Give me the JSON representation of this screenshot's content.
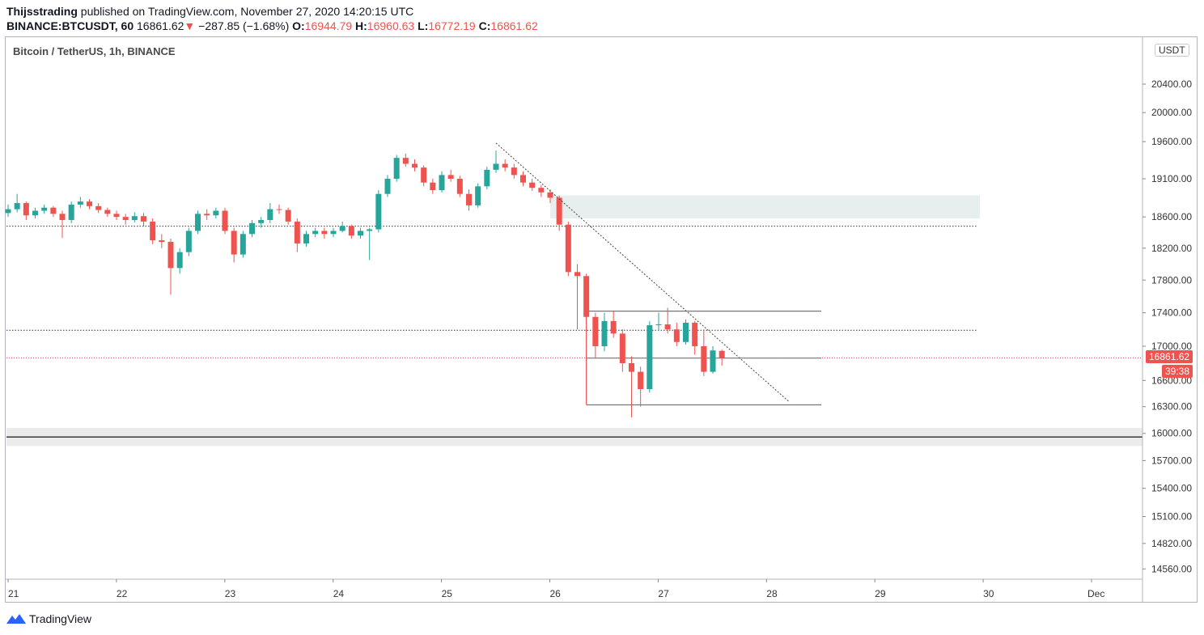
{
  "header": {
    "author": "Thijsstrading",
    "published_text": "published on TradingView.com, November 27, 2020 14:20:15 UTC",
    "symbol": "BINANCE:BTCUSDT, 60",
    "last": "16861.62",
    "change_arrow": "▼",
    "change": "−287.85 (−1.68%)",
    "o_label": "O:",
    "o": "16944.79",
    "h_label": "H:",
    "h": "16960.63",
    "l_label": "L:",
    "l": "16772.19",
    "c_label": "C:",
    "c": "16861.62"
  },
  "legend_title": "Bitcoin / TetherUS, 1h, BINANCE",
  "currency_tag": "USDT",
  "price_tag": "16861.62",
  "countdown_tag": "39:38",
  "brand": "TradingView",
  "colors": {
    "up": "#26a69a",
    "down": "#ef5350",
    "last_price": "#ef5350",
    "zone_resistance": "#e6eeee",
    "zone_support": "#ebebeb"
  },
  "chart_data": {
    "type": "candlestick",
    "y_scale": "log",
    "ylim": [
      14450,
      20900
    ],
    "y_ticks": [
      "20400.00",
      "20000.00",
      "19600.00",
      "19100.00",
      "18600.00",
      "18200.00",
      "17800.00",
      "17400.00",
      "17000.00",
      "16600.00",
      "16300.00",
      "16000.00",
      "15700.00",
      "15400.00",
      "15100.00",
      "14820.00",
      "14560.00"
    ],
    "x_ticks": [
      "21",
      "22",
      "23",
      "24",
      "25",
      "26",
      "27",
      "28",
      "29",
      "30",
      "Dec"
    ],
    "start": "2020-11-21T00:00",
    "candle_interval_hours": 2,
    "ohlc": [
      [
        18650,
        18760,
        18600,
        18700
      ],
      [
        18700,
        18900,
        18660,
        18780
      ],
      [
        18780,
        18800,
        18560,
        18620
      ],
      [
        18620,
        18720,
        18580,
        18680
      ],
      [
        18680,
        18760,
        18640,
        18720
      ],
      [
        18720,
        18740,
        18600,
        18640
      ],
      [
        18640,
        18680,
        18330,
        18560
      ],
      [
        18560,
        18800,
        18520,
        18760
      ],
      [
        18760,
        18860,
        18720,
        18800
      ],
      [
        18800,
        18830,
        18700,
        18740
      ],
      [
        18740,
        18780,
        18650,
        18690
      ],
      [
        18690,
        18720,
        18600,
        18640
      ],
      [
        18640,
        18680,
        18560,
        18600
      ],
      [
        18600,
        18640,
        18500,
        18560
      ],
      [
        18560,
        18660,
        18530,
        18610
      ],
      [
        18610,
        18650,
        18480,
        18540
      ],
      [
        18540,
        18580,
        18250,
        18300
      ],
      [
        18300,
        18380,
        18200,
        18280
      ],
      [
        18280,
        18320,
        17620,
        17950
      ],
      [
        17950,
        18200,
        17880,
        18150
      ],
      [
        18150,
        18460,
        18100,
        18420
      ],
      [
        18420,
        18680,
        18380,
        18640
      ],
      [
        18640,
        18700,
        18560,
        18620
      ],
      [
        18620,
        18720,
        18580,
        18680
      ],
      [
        18680,
        18720,
        18380,
        18420
      ],
      [
        18420,
        18460,
        18020,
        18120
      ],
      [
        18120,
        18420,
        18080,
        18380
      ],
      [
        18380,
        18560,
        18340,
        18520
      ],
      [
        18520,
        18600,
        18460,
        18560
      ],
      [
        18560,
        18780,
        18520,
        18700
      ],
      [
        18700,
        18760,
        18640,
        18690
      ],
      [
        18690,
        18720,
        18500,
        18540
      ],
      [
        18540,
        18580,
        18150,
        18260
      ],
      [
        18260,
        18420,
        18220,
        18380
      ],
      [
        18380,
        18460,
        18340,
        18420
      ],
      [
        18420,
        18460,
        18320,
        18380
      ],
      [
        18380,
        18460,
        18340,
        18420
      ],
      [
        18420,
        18540,
        18400,
        18480
      ],
      [
        18480,
        18500,
        18320,
        18360
      ],
      [
        18360,
        18460,
        18320,
        18420
      ],
      [
        18420,
        18460,
        18050,
        18440
      ],
      [
        18440,
        18950,
        18400,
        18900
      ],
      [
        18900,
        19150,
        18860,
        19100
      ],
      [
        19100,
        19420,
        19060,
        19380
      ],
      [
        19380,
        19440,
        19260,
        19300
      ],
      [
        19300,
        19360,
        19200,
        19250
      ],
      [
        19250,
        19280,
        19000,
        19050
      ],
      [
        19050,
        19100,
        18900,
        18950
      ],
      [
        18950,
        19200,
        18920,
        19150
      ],
      [
        19150,
        19220,
        19060,
        19100
      ],
      [
        19100,
        19140,
        18860,
        18900
      ],
      [
        18900,
        18960,
        18680,
        18750
      ],
      [
        18750,
        19040,
        18720,
        19000
      ],
      [
        19000,
        19260,
        18960,
        19220
      ],
      [
        19220,
        19480,
        19180,
        19300
      ],
      [
        19300,
        19360,
        19200,
        19250
      ],
      [
        19250,
        19300,
        19100,
        19150
      ],
      [
        19150,
        19200,
        19000,
        19050
      ],
      [
        19050,
        19100,
        18940,
        18980
      ],
      [
        18980,
        19020,
        18860,
        18920
      ],
      [
        18920,
        18960,
        18780,
        18850
      ],
      [
        18850,
        18880,
        18420,
        18500
      ],
      [
        18500,
        18540,
        17850,
        17900
      ],
      [
        17900,
        18000,
        17200,
        17850
      ],
      [
        17850,
        17880,
        16320,
        17350
      ],
      [
        17350,
        17400,
        16860,
        17000
      ],
      [
        17000,
        17400,
        16940,
        17300
      ],
      [
        17300,
        17420,
        17100,
        17150
      ],
      [
        17150,
        17200,
        16700,
        16800
      ],
      [
        16800,
        16880,
        16180,
        16700
      ],
      [
        16700,
        16760,
        16300,
        16500
      ],
      [
        16500,
        17300,
        16460,
        17250
      ],
      [
        17250,
        17400,
        17180,
        17260
      ],
      [
        17260,
        17460,
        17150,
        17200
      ],
      [
        17200,
        17280,
        17000,
        17050
      ],
      [
        17050,
        17320,
        17020,
        17280
      ],
      [
        17280,
        17300,
        16900,
        17000
      ],
      [
        17000,
        17200,
        16650,
        16700
      ],
      [
        16700,
        17000,
        16680,
        16950
      ],
      [
        16944.79,
        16960.63,
        16772.19,
        16861.62
      ]
    ],
    "drawings": {
      "horizontal_dotted": [
        18480,
        17190
      ],
      "support_line": 15960,
      "resistance_zone": {
        "from": "2020-11-26T00:00",
        "to": "2020-11-30T00:00",
        "low": 18580,
        "high": 18880
      },
      "support_zone": {
        "low": 15860,
        "high": 16060
      },
      "range_box": {
        "from": "2020-11-26T08:00",
        "to": "2020-11-28T12:00",
        "top": 17420,
        "mid": 16860,
        "bottom": 16320
      },
      "trendline": {
        "from": [
          "2020-11-25T12:00",
          19580
        ],
        "to": [
          "2020-11-28T05:00",
          16350
        ]
      }
    }
  }
}
